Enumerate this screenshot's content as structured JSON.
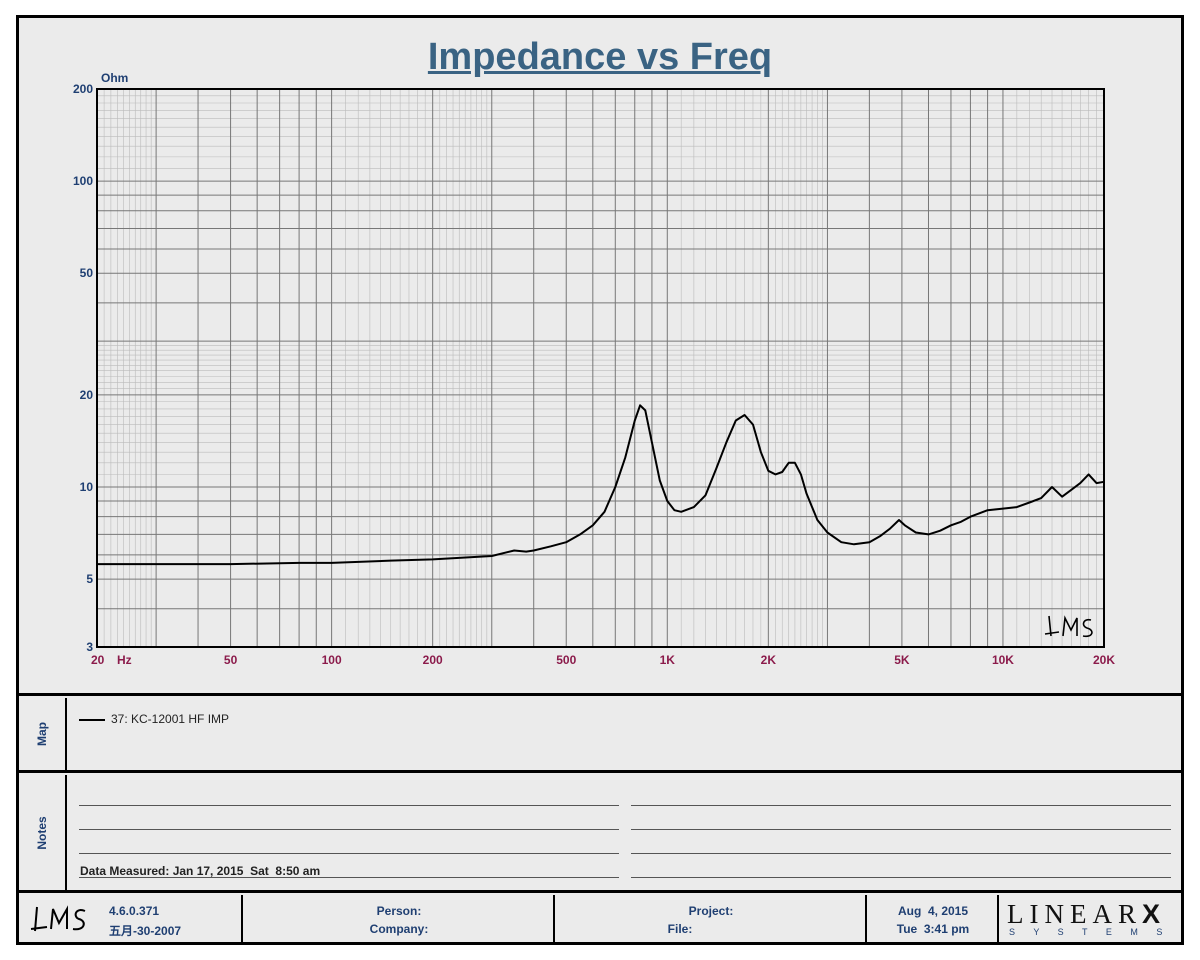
{
  "chart_data": {
    "type": "line",
    "title": "Impedance vs Freq",
    "ylabel": "Ohm",
    "xlabel": "Hz",
    "xscale": "log",
    "yscale": "log",
    "xlim": [
      20,
      20000
    ],
    "ylim": [
      3,
      200
    ],
    "grid": true,
    "x_ticks": [
      {
        "v": 20,
        "label": "20"
      },
      {
        "v": 50,
        "label": "50"
      },
      {
        "v": 100,
        "label": "100"
      },
      {
        "v": 200,
        "label": "200"
      },
      {
        "v": 500,
        "label": "500"
      },
      {
        "v": 1000,
        "label": "1K"
      },
      {
        "v": 2000,
        "label": "2K"
      },
      {
        "v": 5000,
        "label": "5K"
      },
      {
        "v": 10000,
        "label": "10K"
      },
      {
        "v": 20000,
        "label": "20K"
      }
    ],
    "y_ticks": [
      {
        "v": 3,
        "label": "3"
      },
      {
        "v": 5,
        "label": "5"
      },
      {
        "v": 10,
        "label": "10"
      },
      {
        "v": 20,
        "label": "20"
      },
      {
        "v": 50,
        "label": "50"
      },
      {
        "v": 100,
        "label": "100"
      },
      {
        "v": 200,
        "label": "200"
      }
    ],
    "series": [
      {
        "name": "37: KC-12001 HF IMP",
        "color": "#000000",
        "x": [
          20,
          30,
          50,
          80,
          100,
          150,
          200,
          300,
          350,
          380,
          400,
          450,
          500,
          550,
          600,
          650,
          700,
          750,
          800,
          830,
          860,
          900,
          950,
          1000,
          1050,
          1100,
          1200,
          1300,
          1400,
          1500,
          1600,
          1700,
          1800,
          1900,
          2000,
          2100,
          2200,
          2300,
          2400,
          2500,
          2600,
          2800,
          3000,
          3300,
          3600,
          4000,
          4300,
          4600,
          4900,
          5100,
          5500,
          6000,
          6500,
          7000,
          7500,
          8000,
          9000,
          10000,
          11000,
          12000,
          13000,
          14000,
          15000,
          16000,
          17000,
          18000,
          19000,
          20000
        ],
        "y": [
          5.6,
          5.6,
          5.6,
          5.65,
          5.65,
          5.75,
          5.8,
          5.95,
          6.2,
          6.15,
          6.2,
          6.4,
          6.6,
          7.0,
          7.5,
          8.3,
          10.0,
          12.5,
          16.5,
          18.5,
          17.8,
          14.0,
          10.5,
          9.0,
          8.4,
          8.3,
          8.6,
          9.4,
          11.5,
          14.0,
          16.5,
          17.2,
          16.0,
          13.0,
          11.3,
          11.0,
          11.2,
          12.0,
          12.0,
          11.0,
          9.5,
          7.8,
          7.1,
          6.6,
          6.5,
          6.6,
          6.9,
          7.3,
          7.8,
          7.5,
          7.1,
          7.0,
          7.2,
          7.5,
          7.7,
          8.0,
          8.4,
          8.5,
          8.6,
          8.9,
          9.2,
          10.0,
          9.3,
          9.8,
          10.3,
          11.0,
          10.3,
          10.4
        ]
      }
    ]
  },
  "x_unit": "Hz",
  "watermark": "LMS",
  "panels": {
    "map_label": "Map",
    "notes_label": "Notes"
  },
  "legend": {
    "entry": "37: KC-12001 HF IMP"
  },
  "notes": {
    "measured": "Data Measured: Jan 17, 2015  Sat  8:50 am"
  },
  "footer": {
    "version": "4.6.0.371",
    "build_date": "五月-30-2007",
    "person_label": "Person:",
    "company_label": "Company:",
    "project_label": "Project:",
    "file_label": "File:",
    "date": "Aug  4, 2015",
    "time": "Tue  3:41 pm",
    "brand_top": "LINEAR",
    "brand_x": "X",
    "brand_bottom": "S Y S T E M S"
  }
}
